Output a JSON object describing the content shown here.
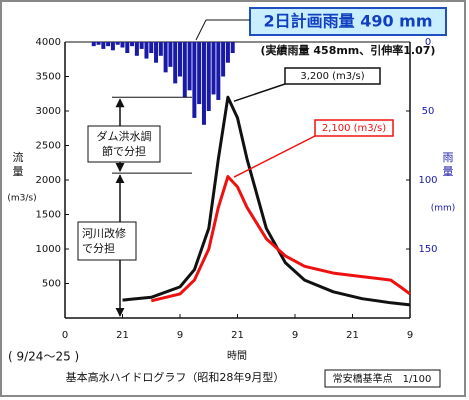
{
  "chart_data": {
    "type": "hydrograph",
    "title": "2日計画雨量 490 mm",
    "subtitle": "(実績雨量 458mm、引伸率1.07)",
    "ylabel": [
      "流",
      "量"
    ],
    "ylabel_unit": "(m3/s)",
    "y2label": [
      "雨",
      "量"
    ],
    "y2label_unit": "(mm)",
    "xlabel": "時間",
    "date_range": "( 9/24～25 )",
    "caption": "基本高水ハイドログラフ（昭和28年9月型）",
    "station": "常安橋基準点　1/100",
    "xlim": [
      0,
      72
    ],
    "xticks": [
      {
        "value": 12,
        "label": "21"
      },
      {
        "value": 24,
        "label": "9"
      },
      {
        "value": 36,
        "label": "21"
      },
      {
        "value": 48,
        "label": "9"
      },
      {
        "value": 60,
        "label": "21"
      },
      {
        "value": 72,
        "label": "9"
      }
    ],
    "ylim": [
      0,
      4000
    ],
    "yticks": [
      0,
      500,
      1000,
      1500,
      2000,
      2500,
      3000,
      3500,
      4000
    ],
    "y2lim": [
      0,
      200
    ],
    "y2ticks": [
      0,
      50,
      100,
      150
    ],
    "y2_inverted": true,
    "series": [
      {
        "name": "rainfall",
        "kind": "bar",
        "axis": "y2",
        "color": "#1a1aa8",
        "x": [
          6,
          7,
          8,
          9,
          10,
          11,
          12,
          13,
          14,
          15,
          16,
          17,
          18,
          19,
          20,
          21,
          22,
          23,
          24,
          25,
          26,
          27,
          28,
          29,
          30,
          31,
          32,
          33,
          34,
          35
        ],
        "values": [
          3,
          2,
          5,
          3,
          6,
          2,
          4,
          8,
          3,
          10,
          5,
          12,
          8,
          15,
          10,
          22,
          18,
          30,
          25,
          40,
          35,
          55,
          45,
          60,
          50,
          38,
          42,
          25,
          15,
          8
        ]
      },
      {
        "name": "plan",
        "kind": "line",
        "color": "#111111",
        "x": [
          12,
          18,
          24,
          27,
          30,
          32,
          34,
          36,
          38,
          42,
          46,
          50,
          56,
          62,
          68,
          72
        ],
        "values": [
          260,
          300,
          450,
          700,
          1300,
          2300,
          3200,
          2900,
          2300,
          1300,
          800,
          550,
          380,
          280,
          220,
          190
        ]
      },
      {
        "name": "actual",
        "kind": "line",
        "color": "#ee1111",
        "x": [
          18,
          24,
          27,
          30,
          32,
          34,
          36,
          38,
          42,
          46,
          50,
          56,
          62,
          68,
          70,
          72
        ],
        "values": [
          250,
          350,
          550,
          1000,
          1600,
          2050,
          1900,
          1600,
          1150,
          900,
          750,
          650,
          600,
          550,
          450,
          350
        ]
      }
    ],
    "peaks": [
      {
        "value": 3200,
        "label": "3,200 (m3/s)",
        "color": "#111111"
      },
      {
        "value": 2100,
        "label": "2,100 (m3/s)",
        "color": "#ee1111"
      }
    ],
    "dam_label": [
      "ダム洪水調",
      "節で分担"
    ],
    "river_label": [
      "河川改修",
      "で分担"
    ]
  }
}
